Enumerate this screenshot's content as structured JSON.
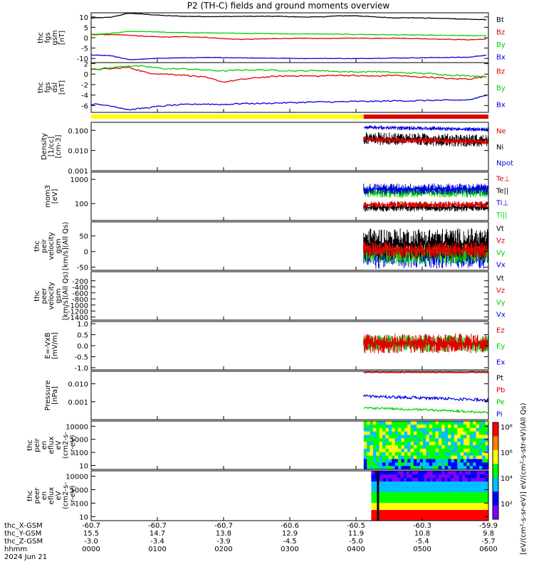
{
  "title": "P2 (TH-C) fields and ground moments overview",
  "date_label": "2024 Jun 21",
  "colors": {
    "black": "#000000",
    "red": "#e00000",
    "green": "#00d000",
    "blue": "#0000e0",
    "yellow": "#ffff00"
  },
  "chart_data": [
    {
      "type": "line",
      "id": "fgs_gsm",
      "ylabel": [
        "thc",
        "fgs",
        "gsm",
        "[nT]"
      ],
      "ylim": [
        -12,
        12
      ],
      "yticks": [
        10,
        5,
        0,
        -5,
        -10
      ],
      "series": [
        {
          "name": "Bt",
          "color": "black",
          "values": [
            9.5,
            9.8,
            11.8,
            11.2,
            10.6,
            10.3,
            10.2,
            10.2,
            10.3,
            10.3,
            10.3,
            10.0,
            10.0,
            10.5,
            10.6,
            10.0,
            9.6,
            9.6,
            9.4,
            9.2,
            8.9,
            8.6
          ]
        },
        {
          "name": "Bz",
          "color": "red",
          "values": [
            1.5,
            1.5,
            1.2,
            0.6,
            0.3,
            0.5,
            0.2,
            -0.5,
            -0.8,
            -0.6,
            -0.4,
            -0.3,
            -0.4,
            -0.3,
            -0.2,
            -0.3,
            -0.2,
            -0.4,
            -0.6,
            -0.8,
            -1.0,
            -0.6
          ]
        },
        {
          "name": "By",
          "color": "green",
          "values": [
            1.6,
            2.0,
            3.0,
            3.0,
            2.6,
            2.4,
            2.3,
            2.3,
            2.1,
            2.0,
            1.9,
            1.8,
            1.8,
            1.7,
            1.6,
            1.5,
            1.4,
            1.3,
            1.2,
            1.1,
            1.0,
            0.9
          ]
        },
        {
          "name": "Bx",
          "color": "blue",
          "values": [
            -8.3,
            -8.6,
            -10.6,
            -10.2,
            -9.8,
            -9.7,
            -9.6,
            -9.6,
            -9.7,
            -9.8,
            -9.9,
            -10.0,
            -10.0,
            -10.0,
            -10.1,
            -9.9,
            -9.8,
            -9.7,
            -9.6,
            -9.5,
            -9.4,
            -8.2
          ]
        }
      ]
    },
    {
      "type": "line",
      "id": "fgs_dsl",
      "ylabel": [
        "thc",
        "fgs",
        "dsl",
        "[nT]"
      ],
      "ylim": [
        -7.3,
        2.2
      ],
      "yticks": [
        2,
        0,
        -2,
        -4,
        -6
      ],
      "series": [
        {
          "name": "Bz",
          "color": "red",
          "values": [
            0.9,
            1.0,
            1.3,
            0.2,
            0.0,
            -0.2,
            -0.6,
            -1.5,
            -1.0,
            -0.6,
            -0.4,
            -0.3,
            -0.4,
            -0.2,
            -0.3,
            -0.4,
            -0.2,
            -0.5,
            -0.6,
            -0.9,
            -0.9,
            -0.4
          ]
        },
        {
          "name": "By",
          "color": "green",
          "values": [
            0.9,
            1.2,
            1.6,
            1.4,
            1.0,
            1.0,
            0.8,
            0.6,
            0.8,
            0.8,
            0.7,
            0.6,
            0.7,
            0.5,
            0.4,
            0.5,
            0.3,
            0.2,
            0.1,
            -0.2,
            -0.3,
            -0.5
          ]
        },
        {
          "name": "Bx",
          "color": "blue",
          "values": [
            -5.7,
            -6.0,
            -6.8,
            -6.4,
            -6.0,
            -5.8,
            -5.7,
            -5.8,
            -5.6,
            -5.6,
            -5.5,
            -5.4,
            -5.3,
            -5.3,
            -5.2,
            -5.2,
            -5.1,
            -5.1,
            -5.0,
            -5.0,
            -4.9,
            -4.0
          ]
        }
      ]
    },
    {
      "type": "line",
      "id": "density",
      "ylabel": [
        "Density",
        "[1/cc]",
        "[cm-3]"
      ],
      "log": true,
      "ylim": [
        0.001,
        0.25
      ],
      "yticks": [
        "0.100",
        "0.010",
        "0.001"
      ],
      "series": [
        {
          "name": "Ne",
          "color": "red",
          "values": []
        },
        {
          "name": "Ni",
          "color": "black",
          "values": []
        },
        {
          "name": "Npot",
          "color": "blue",
          "values": []
        }
      ]
    },
    {
      "type": "line",
      "id": "temp",
      "ylabel": [
        "mom3",
        "[eV]"
      ],
      "log": true,
      "ylim": [
        20,
        2000
      ],
      "yticks": [
        "1000",
        "100"
      ],
      "series": [
        {
          "name": "Te⊥",
          "color": "red",
          "values": []
        },
        {
          "name": "Te||",
          "color": "black",
          "values": []
        },
        {
          "name": "Ti⊥",
          "color": "blue",
          "values": []
        },
        {
          "name": "Ti||",
          "color": "green",
          "values": []
        }
      ]
    },
    {
      "type": "line",
      "id": "peir_vel",
      "ylabel": [
        "thc",
        "peir",
        "velocity",
        "gsm",
        "[km/s](All Qs)"
      ],
      "ylim": [
        -60,
        95
      ],
      "yticks": [
        50,
        0,
        -50
      ],
      "series": [
        {
          "name": "Vt",
          "color": "black",
          "values": []
        },
        {
          "name": "Vz",
          "color": "red",
          "values": []
        },
        {
          "name": "Vy",
          "color": "green",
          "values": []
        },
        {
          "name": "Vx",
          "color": "blue",
          "values": []
        }
      ]
    },
    {
      "type": "line",
      "id": "peer_vel",
      "ylabel": [
        "thc",
        "peer",
        "velocity",
        "gsm",
        "[km/s](All Qs)"
      ],
      "ylim": [
        -1500,
        100
      ],
      "yticks": [
        -200,
        -400,
        -600,
        -800,
        -1000,
        -1200,
        -1400
      ],
      "series": [
        {
          "name": "Vt",
          "color": "black",
          "values": []
        },
        {
          "name": "Vz",
          "color": "red",
          "values": []
        },
        {
          "name": "Vy",
          "color": "green",
          "values": []
        },
        {
          "name": "Vx",
          "color": "blue",
          "values": []
        }
      ]
    },
    {
      "type": "line",
      "id": "efield",
      "ylabel": [
        "E=-VxB",
        "[mV/m]"
      ],
      "ylim": [
        -1.1,
        1.1
      ],
      "yticks": [
        "1.0",
        "0.5",
        "0.0",
        "-0.5",
        "-1.0"
      ],
      "series": [
        {
          "name": "Ez",
          "color": "red",
          "values": []
        },
        {
          "name": "Ey",
          "color": "green",
          "values": []
        },
        {
          "name": "Ex",
          "color": "blue",
          "values": []
        }
      ]
    },
    {
      "type": "line",
      "id": "pressure",
      "ylabel": [
        "Pressure",
        "[nPa]"
      ],
      "log": true,
      "ylim": [
        0.0001,
        0.05
      ],
      "yticks": [
        "0.010",
        "0.001"
      ],
      "series": [
        {
          "name": "Pt",
          "color": "black",
          "values": []
        },
        {
          "name": "Pb",
          "color": "red",
          "values": []
        },
        {
          "name": "Pe",
          "color": "green",
          "values": []
        },
        {
          "name": "Pi",
          "color": "blue",
          "values": []
        }
      ]
    },
    {
      "type": "heatmap",
      "id": "peir_en",
      "ylabel": [
        "thc",
        "peir",
        "en",
        "eflux",
        "eV",
        "(cm2-s-",
        "sr-eV)"
      ],
      "log": true,
      "ylim": [
        5,
        25000
      ],
      "yticks": [
        "10000",
        "1000",
        "100",
        "10"
      ]
    },
    {
      "type": "heatmap",
      "id": "peer_en",
      "ylabel": [
        "thc",
        "peer",
        "en",
        "eflux",
        "eV",
        "(cm2-s-",
        "sr-eV)"
      ],
      "log": true,
      "ylim": [
        5,
        25000
      ],
      "yticks": [
        "10000",
        "1000",
        "100",
        "10"
      ]
    }
  ],
  "colorbar": {
    "ticks": [
      "10⁸",
      "10⁶",
      "10⁴",
      "10²"
    ],
    "label": "[eV/(cm²-s-sr-eV)] eV/(cm²-s-str-eV)(All Qs)",
    "colors": [
      "#ff0000",
      "#ff8000",
      "#ffff00",
      "#00ff00",
      "#00c0ff",
      "#0000ff",
      "#8000ff"
    ]
  },
  "xaxis": {
    "rows": [
      {
        "label": "thc_X-GSM",
        "values": [
          "-60.7",
          "-60.7",
          "-60.7",
          "-60.6",
          "-60.5",
          "-60.3",
          "-59.9"
        ]
      },
      {
        "label": "thc_Y-GSM",
        "values": [
          "15.5",
          "14.7",
          "13.8",
          "12.9",
          "11.9",
          "10.8",
          "9.8"
        ]
      },
      {
        "label": "thc_Z-GSM",
        "values": [
          "-3.0",
          "-3.4",
          "-3.9",
          "-4.5",
          "-5.0",
          "-5.4",
          "-5.7"
        ]
      },
      {
        "label": "hhmm",
        "values": [
          "0000",
          "0100",
          "0200",
          "0300",
          "0400",
          "0500",
          "0600"
        ]
      }
    ]
  }
}
